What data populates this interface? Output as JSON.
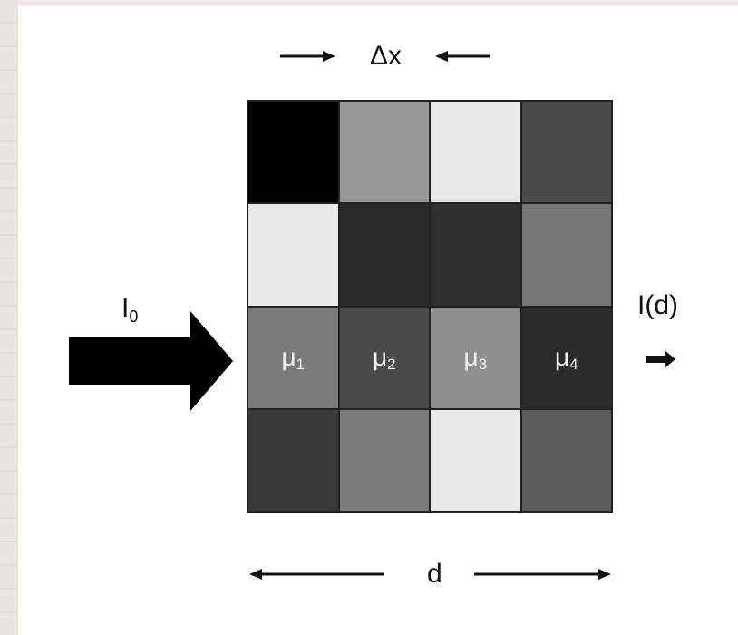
{
  "labels": {
    "delta_x": "Δx",
    "input_main": "I",
    "input_sub": "0",
    "output": "I(d)",
    "distance": "d"
  },
  "grid": {
    "rows": [
      [
        "#000000",
        "#979797",
        "#e9e9e9",
        "#4a4a4a"
      ],
      [
        "#e9e9e9",
        "#2a2a2a",
        "#303030",
        "#757575"
      ],
      [
        "#7a7a7a",
        "#4a4a4a",
        "#8f8f8f",
        "#2c2c2c"
      ],
      [
        "#393939",
        "#7c7c7c",
        "#e9e9e9",
        "#5c5c5c"
      ]
    ]
  },
  "attenuation": [
    {
      "symbol": "μ",
      "index": "1"
    },
    {
      "symbol": "μ",
      "index": "2"
    },
    {
      "symbol": "μ",
      "index": "3"
    },
    {
      "symbol": "μ",
      "index": "4"
    }
  ]
}
